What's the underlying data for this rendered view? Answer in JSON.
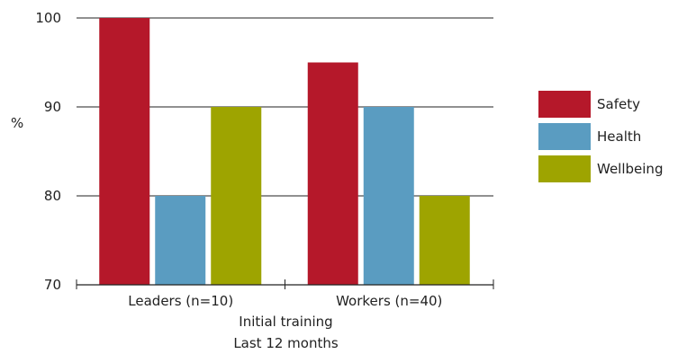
{
  "chart_data": {
    "type": "bar",
    "categories": [
      "Leaders (n=10)",
      "Workers (n=40)"
    ],
    "series": [
      {
        "name": "Safety",
        "values": [
          100,
          95
        ],
        "color": "#b5182a"
      },
      {
        "name": "Health",
        "values": [
          80,
          90
        ],
        "color": "#5a9cc1"
      },
      {
        "name": "Wellbeing",
        "values": [
          90,
          80
        ],
        "color": "#9ea400"
      }
    ],
    "ylabel": "%",
    "xlabel_lines": [
      "Initial training",
      "Last 12 months"
    ],
    "ylim": [
      70,
      100
    ],
    "yticks": [
      "70",
      "80",
      "90",
      "100"
    ],
    "grid": true,
    "legend_position": "right"
  }
}
